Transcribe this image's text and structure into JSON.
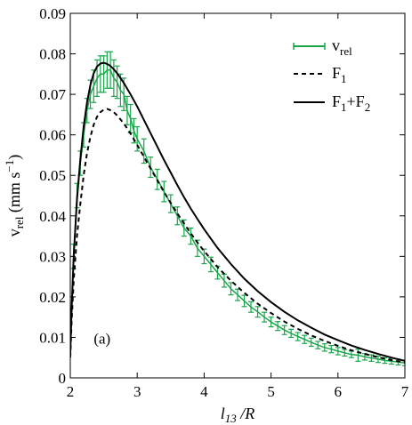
{
  "chart_data": {
    "type": "line",
    "title": "",
    "annotation": "(a)",
    "xlabel": {
      "main": "l",
      "sub": "13",
      "suffix": " /R"
    },
    "ylabel": {
      "main": "v",
      "sub": "rel",
      "suffix": " (mm s",
      "sup": "−1",
      "close": ")"
    },
    "xlim": [
      2,
      7
    ],
    "ylim": [
      0,
      0.09
    ],
    "xticks": [
      2,
      3,
      4,
      5,
      6,
      7
    ],
    "xtick_labels": [
      "2",
      "3",
      "4",
      "5",
      "6",
      "7"
    ],
    "yticks": [
      0,
      0.01,
      0.02,
      0.03,
      0.04,
      0.05,
      0.06,
      0.07,
      0.08,
      0.09
    ],
    "ytick_labels": [
      "0",
      "0.01",
      "0.02",
      "0.03",
      "0.04",
      "0.05",
      "0.06",
      "0.07",
      "0.08",
      "0.09"
    ],
    "grid": false,
    "legend_position": "top-right",
    "colors": {
      "measured": "#1aa54b",
      "model": "#000000"
    },
    "series": [
      {
        "name": "v_rel",
        "legend": {
          "main": "v",
          "sub": "rel"
        },
        "style": "errorbar",
        "color": "#1aa54b",
        "x": [
          2.05,
          2.1,
          2.15,
          2.2,
          2.25,
          2.3,
          2.35,
          2.4,
          2.45,
          2.5,
          2.55,
          2.6,
          2.65,
          2.7,
          2.75,
          2.8,
          2.85,
          2.9,
          2.95,
          3.0,
          3.1,
          3.2,
          3.3,
          3.4,
          3.5,
          3.6,
          3.7,
          3.8,
          3.9,
          4.0,
          4.1,
          4.2,
          4.3,
          4.4,
          4.5,
          4.6,
          4.7,
          4.8,
          4.9,
          5.0,
          5.1,
          5.2,
          5.3,
          5.4,
          5.5,
          5.6,
          5.7,
          5.8,
          5.9,
          6.0,
          6.1,
          6.2,
          6.3,
          6.4,
          6.5,
          6.6,
          6.7,
          6.8,
          6.9,
          7.0
        ],
        "y": [
          0.03,
          0.045,
          0.053,
          0.06,
          0.066,
          0.07,
          0.072,
          0.074,
          0.075,
          0.075,
          0.076,
          0.076,
          0.074,
          0.073,
          0.071,
          0.07,
          0.066,
          0.064,
          0.061,
          0.059,
          0.056,
          0.052,
          0.049,
          0.046,
          0.043,
          0.04,
          0.037,
          0.035,
          0.032,
          0.03,
          0.028,
          0.026,
          0.024,
          0.022,
          0.0205,
          0.019,
          0.0175,
          0.0163,
          0.015,
          0.0138,
          0.0128,
          0.0118,
          0.011,
          0.0102,
          0.0095,
          0.0088,
          0.0081,
          0.0075,
          0.0071,
          0.0066,
          0.0062,
          0.0058,
          0.0056,
          0.0052,
          0.0049,
          0.0046,
          0.0043,
          0.0041,
          0.0039,
          0.0037
        ],
        "err": [
          0.003,
          0.003,
          0.003,
          0.003,
          0.003,
          0.0035,
          0.004,
          0.0045,
          0.0045,
          0.0045,
          0.0045,
          0.0045,
          0.0045,
          0.004,
          0.004,
          0.004,
          0.0035,
          0.0035,
          0.003,
          0.003,
          0.003,
          0.0025,
          0.0025,
          0.0025,
          0.0022,
          0.0022,
          0.002,
          0.002,
          0.002,
          0.0018,
          0.0018,
          0.0016,
          0.0016,
          0.0015,
          0.0014,
          0.0014,
          0.0013,
          0.0013,
          0.0012,
          0.0012,
          0.0011,
          0.0011,
          0.001,
          0.001,
          0.001,
          0.001,
          0.0009,
          0.0009,
          0.0009,
          0.0009,
          0.0008,
          0.0008,
          0.0015,
          0.0008,
          0.0008,
          0.0008,
          0.0007,
          0.0007,
          0.0007,
          0.0007
        ]
      },
      {
        "name": "F_1",
        "legend": {
          "main": "F",
          "sub": "1"
        },
        "style": "dashed",
        "color": "#000000",
        "x": [
          2.0,
          2.02,
          2.05,
          2.1,
          2.15,
          2.2,
          2.25,
          2.3,
          2.35,
          2.4,
          2.45,
          2.5,
          2.55,
          2.6,
          2.65,
          2.7,
          2.8,
          2.9,
          3.0,
          3.1,
          3.2,
          3.3,
          3.4,
          3.5,
          3.6,
          3.7,
          3.8,
          3.9,
          4.0,
          4.2,
          4.4,
          4.6,
          4.8,
          5.0,
          5.2,
          5.4,
          5.6,
          5.8,
          6.0,
          6.2,
          6.4,
          6.6,
          6.8,
          7.0
        ],
        "y": [
          0.005,
          0.014,
          0.024,
          0.035,
          0.043,
          0.05,
          0.0555,
          0.0595,
          0.0625,
          0.0645,
          0.0656,
          0.0662,
          0.0664,
          0.0661,
          0.0656,
          0.0648,
          0.0628,
          0.0603,
          0.0575,
          0.0546,
          0.0517,
          0.0488,
          0.0459,
          0.0432,
          0.0406,
          0.0381,
          0.0357,
          0.0334,
          0.0313,
          0.0274,
          0.024,
          0.021,
          0.0183,
          0.016,
          0.0139,
          0.0121,
          0.0105,
          0.0091,
          0.0079,
          0.0068,
          0.0059,
          0.0051,
          0.0044,
          0.0038
        ]
      },
      {
        "name": "F_1+F_2",
        "legend": {
          "main": "F",
          "sub": "1",
          "mid": "+F",
          "sub2": "2"
        },
        "style": "solid",
        "color": "#000000",
        "x": [
          2.0,
          2.02,
          2.05,
          2.1,
          2.15,
          2.2,
          2.25,
          2.3,
          2.35,
          2.4,
          2.45,
          2.5,
          2.55,
          2.6,
          2.65,
          2.7,
          2.8,
          2.9,
          3.0,
          3.1,
          3.2,
          3.3,
          3.4,
          3.5,
          3.6,
          3.7,
          3.8,
          3.9,
          4.0,
          4.2,
          4.4,
          4.6,
          4.8,
          5.0,
          5.2,
          5.4,
          5.6,
          5.8,
          6.0,
          6.2,
          6.4,
          6.6,
          6.8,
          7.0
        ],
        "y": [
          0.006,
          0.017,
          0.03,
          0.044,
          0.054,
          0.062,
          0.068,
          0.0723,
          0.0752,
          0.0769,
          0.0776,
          0.0778,
          0.0775,
          0.077,
          0.0762,
          0.0752,
          0.0728,
          0.07,
          0.067,
          0.0637,
          0.0604,
          0.0571,
          0.0538,
          0.0507,
          0.0476,
          0.0446,
          0.0418,
          0.0392,
          0.0367,
          0.0321,
          0.0281,
          0.0245,
          0.0214,
          0.0187,
          0.0163,
          0.0142,
          0.0124,
          0.0107,
          0.0093,
          0.008,
          0.0069,
          0.0059,
          0.005,
          0.0042
        ]
      }
    ]
  }
}
